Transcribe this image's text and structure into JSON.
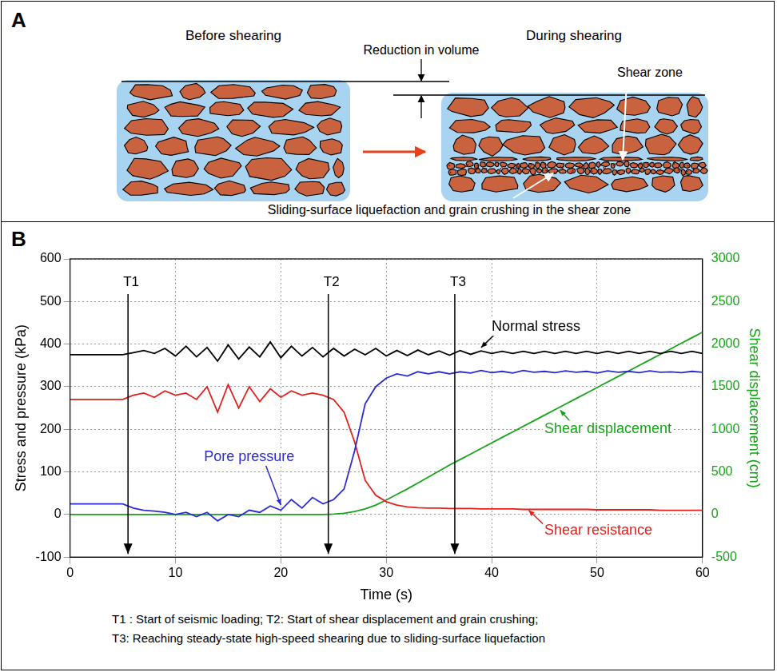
{
  "panel_a": {
    "letter": "A",
    "before": "Before shearing",
    "during": "During shearing",
    "volume": "Reduction in volume",
    "shear_zone": "Shear zone",
    "caption": "Sliding-surface liquefaction and grain crushing in the shear zone"
  },
  "panel_b": {
    "letter": "B",
    "notes": [
      "T1 : Start of seismic loading; T2: Start of shear displacement and grain crushing;",
      "T3: Reaching steady-state high-speed shearing due to sliding-surface liquefaction"
    ]
  },
  "chart_data": {
    "type": "line",
    "xlabel": "Time (s)",
    "ylabel": "Stress and pressure (kPa)",
    "y2label": "Shear displacement (cm)",
    "xlim": [
      0,
      60
    ],
    "xticks": [
      0,
      10,
      20,
      30,
      40,
      50,
      60
    ],
    "ylim": [
      -100,
      600
    ],
    "yticks": [
      -100,
      0,
      100,
      200,
      300,
      400,
      500,
      600
    ],
    "y2lim": [
      -500,
      3000
    ],
    "y2ticks": [
      -500,
      0,
      500,
      1000,
      1500,
      2000,
      2500,
      3000
    ],
    "grid": true,
    "annotations": [
      {
        "label": "T1",
        "x": 5.5
      },
      {
        "label": "T2",
        "x": 24.5
      },
      {
        "label": "T3",
        "x": 36.5
      }
    ],
    "x": [
      0,
      1,
      2,
      3,
      4,
      5,
      6,
      7,
      8,
      9,
      10,
      11,
      12,
      13,
      14,
      15,
      16,
      17,
      18,
      19,
      20,
      21,
      22,
      23,
      24,
      25,
      26,
      27,
      28,
      29,
      30,
      31,
      32,
      33,
      34,
      35,
      36,
      37,
      38,
      39,
      40,
      41,
      42,
      43,
      44,
      45,
      46,
      47,
      48,
      49,
      50,
      51,
      52,
      53,
      54,
      55,
      56,
      57,
      58,
      59,
      60
    ],
    "series": [
      {
        "name": "Normal stress",
        "color": "#000000",
        "values": [
          375,
          375,
          375,
          375,
          375,
          375,
          380,
          385,
          378,
          390,
          372,
          395,
          370,
          392,
          360,
          398,
          365,
          393,
          370,
          405,
          368,
          395,
          372,
          392,
          370,
          390,
          372,
          388,
          375,
          390,
          372,
          385,
          373,
          386,
          375,
          384,
          374,
          385,
          376,
          384,
          378,
          383,
          378,
          383,
          378,
          383,
          378,
          383,
          378,
          383,
          378,
          383,
          378,
          383,
          378,
          383,
          378,
          383,
          378,
          383,
          378
        ]
      },
      {
        "name": "Pore pressure",
        "color": "#2b2bd6",
        "values": [
          25,
          25,
          25,
          25,
          25,
          25,
          15,
          10,
          8,
          5,
          0,
          5,
          -5,
          5,
          -15,
          0,
          -5,
          10,
          5,
          20,
          10,
          35,
          15,
          40,
          25,
          35,
          60,
          150,
          260,
          300,
          320,
          330,
          325,
          335,
          330,
          335,
          330,
          335,
          332,
          338,
          333,
          336,
          332,
          338,
          334,
          336,
          333,
          337,
          334,
          336,
          332,
          337,
          334,
          336,
          333,
          337,
          334,
          335,
          333,
          336,
          334
        ]
      },
      {
        "name": "Shear resistance",
        "color": "#e3201b",
        "values": [
          270,
          270,
          270,
          270,
          270,
          270,
          280,
          285,
          275,
          290,
          280,
          285,
          270,
          300,
          240,
          305,
          250,
          300,
          265,
          295,
          275,
          290,
          280,
          285,
          280,
          270,
          240,
          170,
          80,
          45,
          30,
          22,
          18,
          16,
          15,
          15,
          14,
          14,
          14,
          13,
          13,
          13,
          13,
          12,
          12,
          12,
          12,
          12,
          12,
          12,
          11,
          11,
          11,
          11,
          11,
          11,
          10,
          10,
          10,
          10,
          10
        ]
      },
      {
        "name": "Shear displacement",
        "color": "#17a317",
        "axis": "y2",
        "values": [
          0,
          0,
          0,
          0,
          0,
          0,
          0,
          0,
          0,
          0,
          0,
          0,
          0,
          0,
          0,
          0,
          0,
          0,
          0,
          0,
          0,
          0,
          0,
          0,
          0,
          5,
          15,
          35,
          65,
          110,
          170,
          235,
          300,
          370,
          440,
          510,
          580,
          645,
          710,
          775,
          840,
          905,
          970,
          1035,
          1100,
          1165,
          1230,
          1295,
          1360,
          1425,
          1490,
          1555,
          1620,
          1685,
          1750,
          1815,
          1880,
          1945,
          2010,
          2075,
          2140
        ]
      }
    ]
  }
}
